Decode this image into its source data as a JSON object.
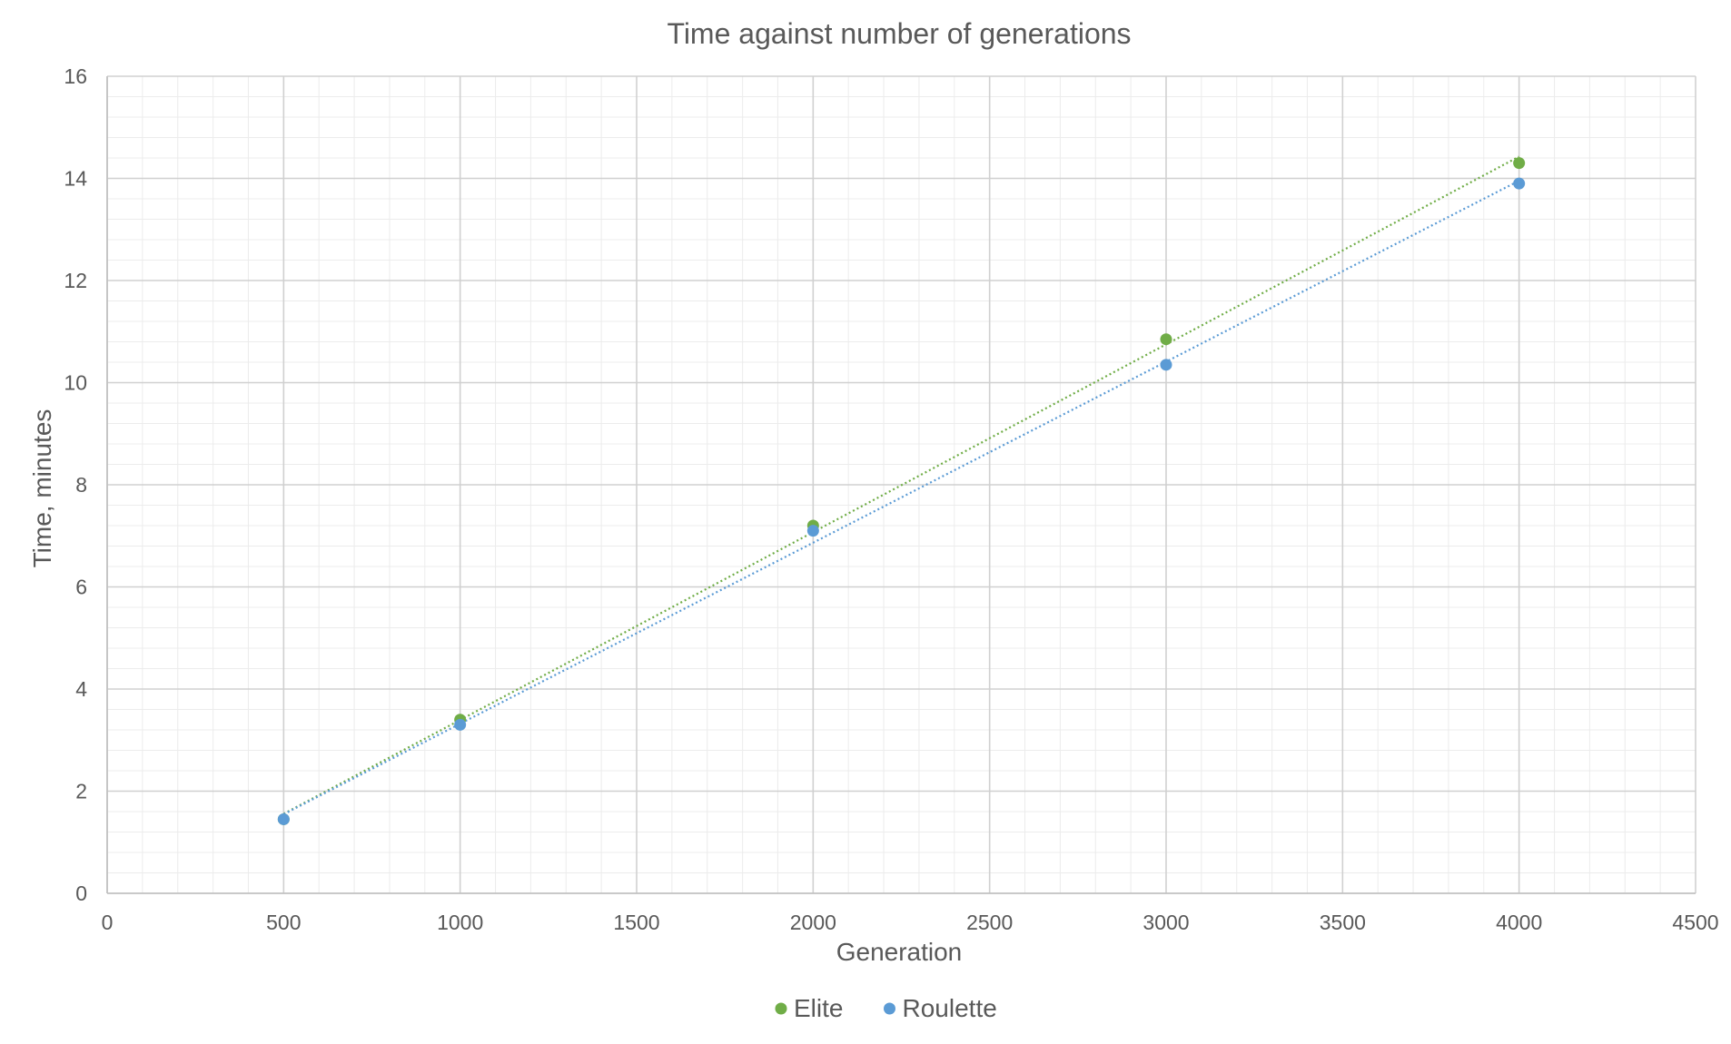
{
  "chart_data": {
    "type": "scatter",
    "title": "Time against number of generations",
    "xlabel": "Generation",
    "ylabel": "Time, minutes",
    "xlim": [
      0,
      4500
    ],
    "ylim": [
      0,
      16
    ],
    "x_ticks": [
      0,
      500,
      1000,
      1500,
      2000,
      2500,
      3000,
      3500,
      4000,
      4500
    ],
    "y_ticks": [
      0,
      2,
      4,
      6,
      8,
      10,
      12,
      14,
      16
    ],
    "grid": true,
    "minor_grid": true,
    "legend_position": "bottom",
    "series": [
      {
        "name": "Elite",
        "color": "#70ad47",
        "marker": "circle",
        "trendline": "linear",
        "x": [
          500,
          1000,
          2000,
          3000,
          4000
        ],
        "y": [
          1.45,
          3.4,
          7.2,
          10.85,
          14.3
        ]
      },
      {
        "name": "Roulette",
        "color": "#5b9bd5",
        "marker": "circle",
        "trendline": "linear",
        "x": [
          500,
          1000,
          2000,
          3000,
          4000
        ],
        "y": [
          1.45,
          3.3,
          7.1,
          10.35,
          13.9
        ]
      }
    ]
  }
}
